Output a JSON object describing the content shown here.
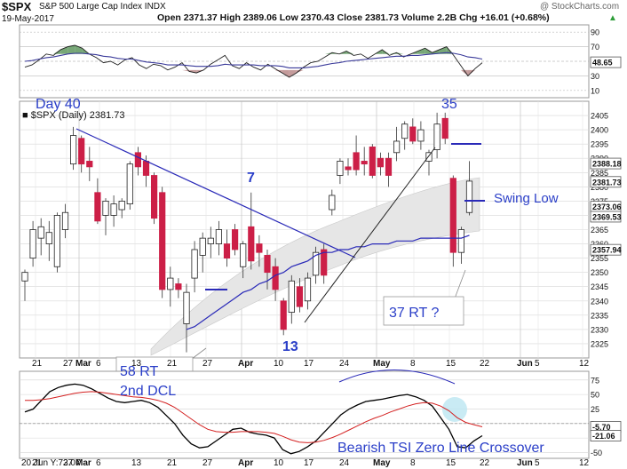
{
  "header": {
    "symbol": "$SPX",
    "name": "S&P 500 Large Cap Index  INDX",
    "date": "19-May-2017",
    "quote": "Open 2371.37  High 2389.06  Low 2370.43  Close 2381.73  Volume 2.2B  Chg +16.01 (+0.68%)",
    "chg_marker": "▲",
    "source": "@ StockCharts.com"
  },
  "main_legend": "■ $SPX (Daily) 2381.73",
  "bottom_legend": "20 Jun Y:73.07",
  "colors": {
    "up": "#ffffff",
    "down": "#cc1f47",
    "ma": "#2a2ab8",
    "band": "#e6e6e6",
    "annot": "#2a3ec8",
    "tsi": "#000000",
    "signal": "#d42020",
    "rsi": "#3a3a9a"
  },
  "x_axis": {
    "labels": [
      "21",
      "27",
      "Mar",
      "6",
      "13",
      "21",
      "27",
      "Apr",
      "10",
      "17",
      "24",
      "May",
      "8",
      "15",
      "22",
      "Jun",
      "5",
      "12"
    ],
    "bold": [
      "Mar",
      "Apr",
      "May",
      "Jun"
    ]
  },
  "chart_data": [
    {
      "type": "line",
      "panel": "RSI",
      "ylim": [
        0,
        100
      ],
      "y_ticks": [
        "90",
        "70",
        "30",
        "10"
      ],
      "current_value": "48.65",
      "series": [
        {
          "values": [
            42,
            45,
            52,
            60,
            58,
            66,
            70,
            72,
            68,
            60,
            55,
            48,
            50,
            45,
            52,
            55,
            45,
            40,
            46,
            44,
            38,
            42,
            48,
            36,
            34,
            38,
            46,
            52,
            58,
            44,
            40,
            48,
            42,
            38,
            46,
            40,
            34,
            28,
            34,
            42,
            48,
            50,
            56,
            62,
            60,
            64,
            58,
            60,
            54,
            60,
            66,
            58,
            62,
            56,
            60,
            64,
            68,
            62,
            66,
            70,
            58,
            44,
            30,
            40,
            48
          ]
        },
        {
          "values": [
            50,
            51,
            53,
            55,
            56,
            58,
            60,
            61,
            61,
            60,
            59,
            57,
            56,
            54,
            53,
            53,
            51,
            49,
            48,
            47,
            45,
            45,
            45,
            44,
            43,
            43,
            43,
            44,
            46,
            45,
            45,
            45,
            45,
            44,
            44,
            44,
            43,
            41,
            41,
            41,
            42,
            43,
            45,
            47,
            48,
            50,
            51,
            52,
            53,
            54,
            55,
            56,
            57,
            57,
            58,
            58,
            59,
            60,
            61,
            62,
            61,
            59,
            56,
            55,
            53
          ]
        }
      ]
    },
    {
      "type": "candlestick",
      "panel": "price",
      "title": "$SPX (Daily) 2381.73",
      "ylim": [
        2320,
        2410
      ],
      "y_ticks": [
        "2405",
        "2400",
        "2395",
        "2390",
        "2385",
        "2380",
        "2375",
        "2370",
        "2365",
        "2360",
        "2355",
        "2350",
        "2345",
        "2340",
        "2335",
        "2330",
        "2325"
      ],
      "price_labels": [
        "2388.18",
        "2381.73",
        "2373.06",
        "2369.53",
        "2357.94"
      ],
      "candles": [
        {
          "x": 0,
          "o": 2347,
          "h": 2351,
          "l": 2340,
          "c": 2350
        },
        {
          "x": 1,
          "o": 2355,
          "h": 2368,
          "l": 2352,
          "c": 2365
        },
        {
          "x": 2,
          "o": 2362,
          "h": 2369,
          "l": 2356,
          "c": 2366
        },
        {
          "x": 3,
          "o": 2360,
          "h": 2368,
          "l": 2354,
          "c": 2364
        },
        {
          "x": 4,
          "o": 2352,
          "h": 2371,
          "l": 2350,
          "c": 2370
        },
        {
          "x": 5,
          "o": 2365,
          "h": 2374,
          "l": 2362,
          "c": 2371
        },
        {
          "x": 6,
          "o": 2388,
          "h": 2401,
          "l": 2386,
          "c": 2398
        },
        {
          "x": 7,
          "o": 2397,
          "h": 2398,
          "l": 2385,
          "c": 2388
        },
        {
          "x": 8,
          "o": 2389,
          "h": 2394,
          "l": 2382,
          "c": 2387
        },
        {
          "x": 9,
          "o": 2378,
          "h": 2383,
          "l": 2367,
          "c": 2368
        },
        {
          "x": 10,
          "o": 2370,
          "h": 2376,
          "l": 2363,
          "c": 2375
        },
        {
          "x": 11,
          "o": 2370,
          "h": 2377,
          "l": 2366,
          "c": 2374
        },
        {
          "x": 12,
          "o": 2372,
          "h": 2376,
          "l": 2369,
          "c": 2375
        },
        {
          "x": 13,
          "o": 2374,
          "h": 2389,
          "l": 2372,
          "c": 2388
        },
        {
          "x": 14,
          "o": 2392,
          "h": 2394,
          "l": 2384,
          "c": 2387
        },
        {
          "x": 15,
          "o": 2389,
          "h": 2391,
          "l": 2380,
          "c": 2384
        },
        {
          "x": 16,
          "o": 2384,
          "h": 2385,
          "l": 2367,
          "c": 2369
        },
        {
          "x": 17,
          "o": 2378,
          "h": 2380,
          "l": 2341,
          "c": 2344
        },
        {
          "x": 18,
          "o": 2344,
          "h": 2352,
          "l": 2338,
          "c": 2348
        },
        {
          "x": 19,
          "o": 2346,
          "h": 2348,
          "l": 2341,
          "c": 2344
        },
        {
          "x": 20,
          "o": 2332,
          "h": 2346,
          "l": 2322,
          "c": 2343
        },
        {
          "x": 21,
          "o": 2348,
          "h": 2361,
          "l": 2343,
          "c": 2358
        },
        {
          "x": 22,
          "o": 2356,
          "h": 2364,
          "l": 2350,
          "c": 2362
        },
        {
          "x": 23,
          "o": 2360,
          "h": 2366,
          "l": 2355,
          "c": 2362
        },
        {
          "x": 24,
          "o": 2360,
          "h": 2368,
          "l": 2356,
          "c": 2365
        },
        {
          "x": 25,
          "o": 2360,
          "h": 2365,
          "l": 2352,
          "c": 2355
        },
        {
          "x": 26,
          "o": 2365,
          "h": 2367,
          "l": 2356,
          "c": 2358
        },
        {
          "x": 27,
          "o": 2352,
          "h": 2361,
          "l": 2348,
          "c": 2360
        },
        {
          "x": 28,
          "o": 2366,
          "h": 2378,
          "l": 2351,
          "c": 2354
        },
        {
          "x": 29,
          "o": 2360,
          "h": 2363,
          "l": 2352,
          "c": 2357
        },
        {
          "x": 30,
          "o": 2356,
          "h": 2358,
          "l": 2344,
          "c": 2350
        },
        {
          "x": 31,
          "o": 2352,
          "h": 2355,
          "l": 2340,
          "c": 2344
        },
        {
          "x": 32,
          "o": 2340,
          "h": 2341,
          "l": 2328,
          "c": 2330
        },
        {
          "x": 33,
          "o": 2336,
          "h": 2349,
          "l": 2332,
          "c": 2347
        },
        {
          "x": 34,
          "o": 2345,
          "h": 2348,
          "l": 2336,
          "c": 2338
        },
        {
          "x": 35,
          "o": 2340,
          "h": 2350,
          "l": 2337,
          "c": 2348
        },
        {
          "x": 36,
          "o": 2349,
          "h": 2359,
          "l": 2346,
          "c": 2357
        },
        {
          "x": 37,
          "o": 2358,
          "h": 2360,
          "l": 2346,
          "c": 2349
        },
        {
          "x": 38,
          "o": 2372,
          "h": 2379,
          "l": 2370,
          "c": 2377
        },
        {
          "x": 39,
          "o": 2384,
          "h": 2390,
          "l": 2381,
          "c": 2389
        },
        {
          "x": 40,
          "o": 2387,
          "h": 2390,
          "l": 2384,
          "c": 2386
        },
        {
          "x": 41,
          "o": 2392,
          "h": 2398,
          "l": 2384,
          "c": 2386
        },
        {
          "x": 42,
          "o": 2389,
          "h": 2394,
          "l": 2384,
          "c": 2388
        },
        {
          "x": 43,
          "o": 2394,
          "h": 2395,
          "l": 2383,
          "c": 2384
        },
        {
          "x": 44,
          "o": 2390,
          "h": 2392,
          "l": 2384,
          "c": 2387
        },
        {
          "x": 45,
          "o": 2390,
          "h": 2392,
          "l": 2380,
          "c": 2384
        },
        {
          "x": 46,
          "o": 2392,
          "h": 2401,
          "l": 2389,
          "c": 2396
        },
        {
          "x": 47,
          "o": 2397,
          "h": 2403,
          "l": 2393,
          "c": 2402
        },
        {
          "x": 48,
          "o": 2401,
          "h": 2404,
          "l": 2395,
          "c": 2396
        },
        {
          "x": 49,
          "o": 2396,
          "h": 2403,
          "l": 2393,
          "c": 2400
        },
        {
          "x": 50,
          "o": 2389,
          "h": 2393,
          "l": 2384,
          "c": 2392
        },
        {
          "x": 51,
          "o": 2393,
          "h": 2406,
          "l": 2390,
          "c": 2402
        },
        {
          "x": 52,
          "o": 2404,
          "h": 2406,
          "l": 2395,
          "c": 2397
        },
        {
          "x": 53,
          "o": 2383,
          "h": 2384,
          "l": 2352,
          "c": 2357
        },
        {
          "x": 54,
          "o": 2357,
          "h": 2366,
          "l": 2353,
          "c": 2365
        },
        {
          "x": 55,
          "o": 2371,
          "h": 2389,
          "l": 2370,
          "c": 2382
        }
      ],
      "ma_series": [
        2330,
        2331,
        2333,
        2335,
        2337,
        2339,
        2341,
        2343,
        2344,
        2346,
        2347,
        2349,
        2350,
        2352,
        2353,
        2354,
        2356,
        2357,
        2357,
        2358,
        2358,
        2359,
        2359,
        2360,
        2360,
        2360,
        2361,
        2361,
        2361,
        2362,
        2362,
        2362,
        2362,
        2362,
        2362,
        2363,
        2363,
        2363,
        2364,
        2364,
        2365,
        2365,
        2366,
        2366,
        2367,
        2367,
        2368,
        2368,
        2368,
        2369,
        2369,
        2369,
        2369,
        2369,
        2369,
        2369.53
      ]
    },
    {
      "type": "line",
      "panel": "TSI",
      "ylim": [
        -60,
        90
      ],
      "y_ticks": [
        "75",
        "50",
        "25",
        "0",
        "-25",
        "-50"
      ],
      "value_labels": [
        "-5.70",
        "-21.06"
      ],
      "series": [
        {
          "values": [
            20,
            25,
            40,
            55,
            62,
            66,
            68,
            66,
            60,
            52,
            44,
            38,
            36,
            38,
            40,
            36,
            28,
            14,
            0,
            -20,
            -35,
            -42,
            -40,
            -30,
            -20,
            -10,
            -8,
            -15,
            -18,
            -20,
            -25,
            -45,
            -52,
            -48,
            -40,
            -30,
            -15,
            0,
            15,
            25,
            32,
            38,
            40,
            42,
            45,
            48,
            50,
            46,
            40,
            30,
            10,
            -10,
            -40,
            -42,
            -30,
            -21
          ]
        },
        {
          "values": [
            40,
            40,
            41,
            43,
            46,
            49,
            52,
            54,
            55,
            54,
            52,
            50,
            48,
            46,
            45,
            43,
            40,
            35,
            28,
            18,
            8,
            -2,
            -10,
            -14,
            -15,
            -15,
            -14,
            -14,
            -14,
            -15,
            -17,
            -22,
            -28,
            -32,
            -33,
            -32,
            -29,
            -24,
            -18,
            -11,
            -4,
            3,
            9,
            14,
            20,
            25,
            30,
            34,
            36,
            35,
            30,
            22,
            10,
            2,
            -2,
            -5.7
          ]
        }
      ]
    }
  ],
  "annotations": {
    "day40": "Day 40",
    "label35": "35",
    "label7": "7",
    "label13": "13",
    "swing_low": "Swing Low",
    "rt37": "37 RT ?",
    "rt58": "58 RT",
    "dcl2": "2nd DCL",
    "bearish": "Bearish TSI Zero Line Crossover"
  }
}
